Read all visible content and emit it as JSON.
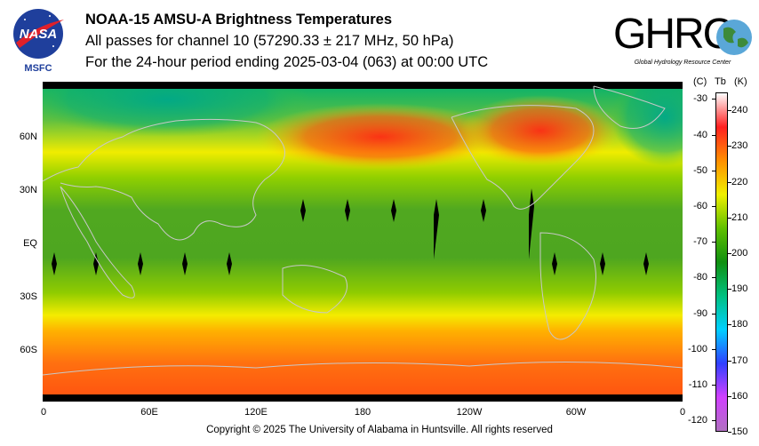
{
  "header": {
    "title": "NOAA-15 AMSU-A Brightness Temperatures",
    "subtitle": "All passes for channel 10 (57290.33 ± 217 MHz, 50 hPa)",
    "period": "For the 24-hour period ending 2025-03-04 (063) at 00:00 UTC"
  },
  "logos": {
    "nasa_text": "NASA",
    "msfc_text": "MSFC",
    "ghrc_text": "GHRC",
    "ghrc_subtitle": "Global Hydrology Resource Center"
  },
  "map": {
    "lat_labels": [
      "60N",
      "30N",
      "EQ",
      "30S",
      "60S"
    ],
    "lat_values": [
      60,
      30,
      0,
      -30,
      -60
    ],
    "lon_labels": [
      "0",
      "60E",
      "120E",
      "180",
      "120W",
      "60W",
      "0"
    ],
    "lon_values": [
      0,
      60,
      120,
      180,
      240,
      300,
      360
    ]
  },
  "colorbar": {
    "header_c": "(C)",
    "header_tb": "Tb",
    "header_k": "(K)",
    "celsius_ticks": [
      "-30",
      "-40",
      "-50",
      "-60",
      "-70",
      "-80",
      "-90",
      "-100",
      "-110",
      "-120"
    ],
    "celsius_values": [
      -30,
      -40,
      -50,
      -60,
      -70,
      -80,
      -90,
      -100,
      -110,
      -120
    ],
    "kelvin_ticks": [
      "240",
      "230",
      "220",
      "210",
      "200",
      "190",
      "180",
      "170",
      "160",
      "150"
    ],
    "kelvin_values": [
      240,
      230,
      220,
      210,
      200,
      190,
      180,
      170,
      160,
      150
    ],
    "range_k": [
      150,
      245
    ],
    "colors": [
      "#b070c0",
      "#d040ff",
      "#3040ff",
      "#00d0ff",
      "#00c080",
      "#109010",
      "#60c000",
      "#f0f000",
      "#ff9000",
      "#ff2020",
      "#ffffff"
    ]
  },
  "footer": {
    "copyright": "Copyright © 2025 The University of Alabama in Huntsville.  All rights reserved"
  }
}
